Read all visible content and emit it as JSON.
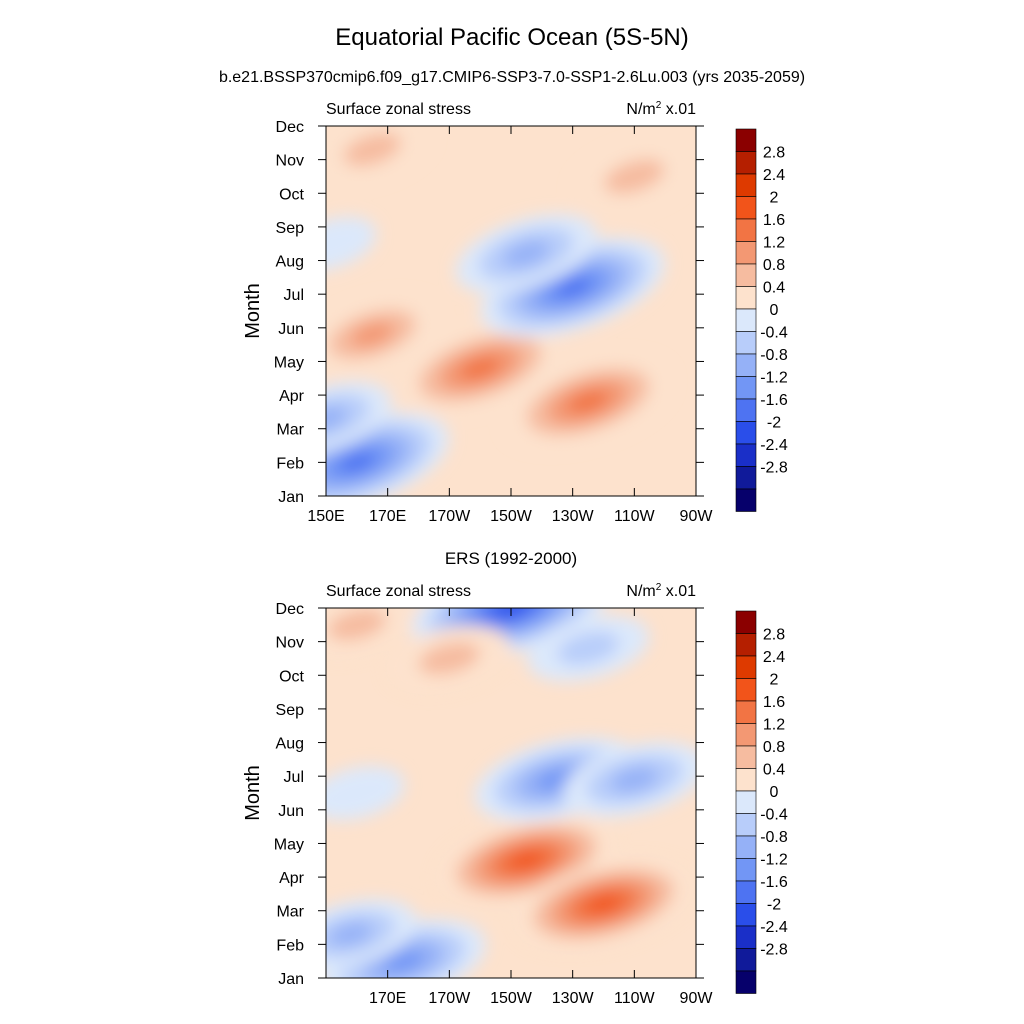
{
  "title": "Equatorial Pacific Ocean (5S-5N)",
  "subtitle": "b.e21.BSSP370cmip6.f09_g17.CMIP6-SSP3-7.0-SSP1-2.6Lu.003 (yrs 2035-2059)",
  "chart_data": [
    {
      "type": "heatmap",
      "panel_title": "",
      "left_label": "Surface zonal stress",
      "units_label": "N/m",
      "units_sup": "2",
      "units_suffix": " x.01",
      "ylabel": "Month",
      "x_tick_labels": [
        "150E",
        "170E",
        "170W",
        "150W",
        "130W",
        "110W",
        "90W"
      ],
      "x_range_deg_east": [
        150,
        270
      ],
      "y_tick_labels": [
        "Jan",
        "Feb",
        "Mar",
        "Apr",
        "May",
        "Jun",
        "Jul",
        "Aug",
        "Sep",
        "Oct",
        "Nov",
        "Dec"
      ],
      "contour_levels": [
        "2.8",
        "2.4",
        "2",
        "1.6",
        "1.2",
        "0.8",
        "0.4",
        "0",
        "-0.4",
        "-0.8",
        "-1.2",
        "-1.6",
        "-2",
        "-2.4",
        "-2.8"
      ],
      "features": [
        {
          "lon": 160,
          "month": 2,
          "value": -2.0
        },
        {
          "lon": 150,
          "month": 3.3,
          "value": -1.0
        },
        {
          "lon": 200,
          "month": 4.8,
          "value": 1.6
        },
        {
          "lon": 235,
          "month": 3.8,
          "value": 1.6
        },
        {
          "lon": 165,
          "month": 5.8,
          "value": 1.0
        },
        {
          "lon": 230,
          "month": 7.2,
          "value": -2.0
        },
        {
          "lon": 215,
          "month": 8.2,
          "value": -1.2
        },
        {
          "lon": 250,
          "month": 10.5,
          "value": 0.8
        },
        {
          "lon": 165,
          "month": 11.3,
          "value": 0.7
        },
        {
          "lon": 152,
          "month": 8.5,
          "value": -0.2
        }
      ]
    },
    {
      "type": "heatmap",
      "panel_title": "ERS (1992-2000)",
      "left_label": "Surface zonal stress",
      "units_label": "N/m",
      "units_sup": "2",
      "units_suffix": " x.01",
      "ylabel": "Month",
      "x_tick_labels": [
        "",
        "170E",
        "170W",
        "150W",
        "130W",
        "110W",
        "90W"
      ],
      "x_range_deg_east": [
        150,
        270
      ],
      "y_tick_labels": [
        "Jan",
        "Feb",
        "Mar",
        "Apr",
        "May",
        "Jun",
        "Jul",
        "Aug",
        "Sep",
        "Oct",
        "Nov",
        "Dec"
      ],
      "contour_levels": [
        "2.8",
        "2.4",
        "2",
        "1.6",
        "1.2",
        "0.8",
        "0.4",
        "0",
        "-0.4",
        "-0.8",
        "-1.2",
        "-1.6",
        "-2",
        "-2.4",
        "-2.8"
      ],
      "features": [
        {
          "lon": 175,
          "month": 1.5,
          "value": -1.6
        },
        {
          "lon": 158,
          "month": 2.3,
          "value": -1.0
        },
        {
          "lon": 215,
          "month": 4.5,
          "value": 1.8
        },
        {
          "lon": 240,
          "month": 3.2,
          "value": 1.8
        },
        {
          "lon": 225,
          "month": 6.9,
          "value": -1.6
        },
        {
          "lon": 250,
          "month": 6.9,
          "value": -1.2
        },
        {
          "lon": 210,
          "month": 12,
          "value": -2.2
        },
        {
          "lon": 235,
          "month": 10.8,
          "value": -0.8
        },
        {
          "lon": 190,
          "month": 10.5,
          "value": 0.8
        },
        {
          "lon": 160,
          "month": 11.5,
          "value": 0.7
        },
        {
          "lon": 160,
          "month": 6.5,
          "value": -0.3
        }
      ]
    }
  ],
  "colorbar": {
    "labels": [
      "2.8",
      "2.4",
      "2",
      "1.6",
      "1.2",
      "0.8",
      "0.4",
      "0",
      "-0.4",
      "-0.8",
      "-1.2",
      "-1.6",
      "-2",
      "-2.4",
      "-2.8"
    ],
    "colors": [
      "#8b0000",
      "#b51f00",
      "#de3a00",
      "#f2541a",
      "#f27444",
      "#f39873",
      "#f6bca0",
      "#fde2cd",
      "#dbe8fb",
      "#b8cdfa",
      "#95b1f7",
      "#7296f5",
      "#4e73f2",
      "#2a4eea",
      "#1a2fc8",
      "#101a9a",
      "#06006b"
    ]
  }
}
